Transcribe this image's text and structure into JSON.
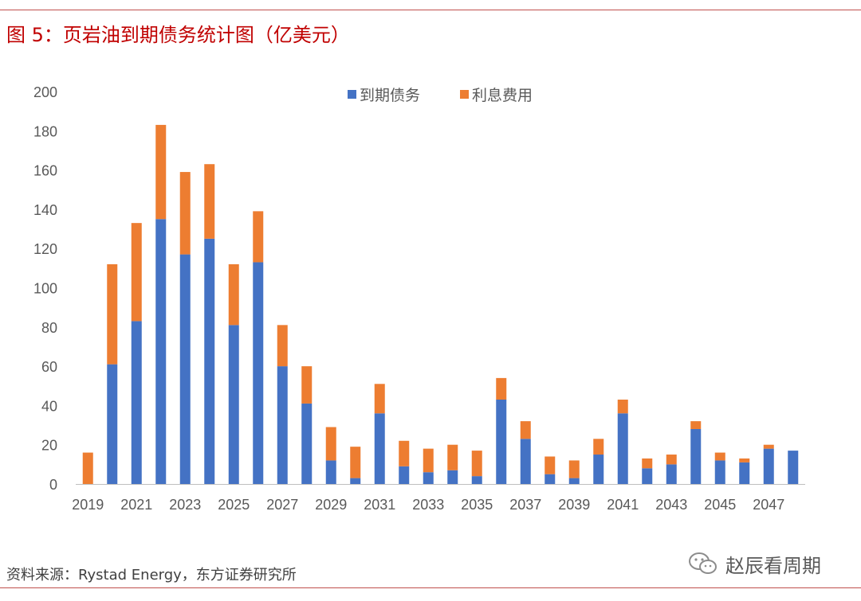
{
  "title": "图 5：页岩油到期债务统计图（亿美元）",
  "source": "资料来源：Rystad Energy，东方证券研究所",
  "watermark": {
    "text": "赵辰看周期",
    "icon": "wechat-icon"
  },
  "colors": {
    "rule": "#c0504d",
    "title": "#c00000",
    "debt": "#4472c4",
    "interest": "#ed7d31"
  },
  "chart_data": {
    "type": "bar",
    "stacked": true,
    "title": "",
    "xlabel": "",
    "ylabel": "",
    "ylim": [
      0,
      200
    ],
    "yticks": [
      0,
      20,
      40,
      60,
      80,
      100,
      120,
      140,
      160,
      180,
      200
    ],
    "categories": [
      2019,
      2020,
      2021,
      2022,
      2023,
      2024,
      2025,
      2026,
      2027,
      2028,
      2029,
      2030,
      2031,
      2032,
      2033,
      2034,
      2035,
      2036,
      2037,
      2038,
      2039,
      2040,
      2041,
      2042,
      2043,
      2044,
      2045,
      2046,
      2047,
      2048
    ],
    "xtick_labels": [
      "2019",
      "2021",
      "2023",
      "2025",
      "2027",
      "2029",
      "2031",
      "2033",
      "2035",
      "2037",
      "2039",
      "2041",
      "2043",
      "2045",
      "2047"
    ],
    "legend_position": "top",
    "series": [
      {
        "name": "到期债务",
        "color": "#4472c4",
        "values": [
          0,
          61,
          83,
          135,
          117,
          125,
          81,
          113,
          60,
          41,
          12,
          3,
          36,
          9,
          6,
          7,
          4,
          43,
          23,
          5,
          3,
          15,
          36,
          8,
          10,
          28,
          12,
          11,
          18,
          17
        ]
      },
      {
        "name": "利息费用",
        "color": "#ed7d31",
        "values": [
          16,
          51,
          50,
          48,
          42,
          38,
          31,
          26,
          21,
          19,
          17,
          16,
          15,
          13,
          12,
          13,
          13,
          11,
          9,
          9,
          9,
          8,
          7,
          5,
          5,
          4,
          4,
          2,
          2,
          0
        ]
      }
    ]
  }
}
